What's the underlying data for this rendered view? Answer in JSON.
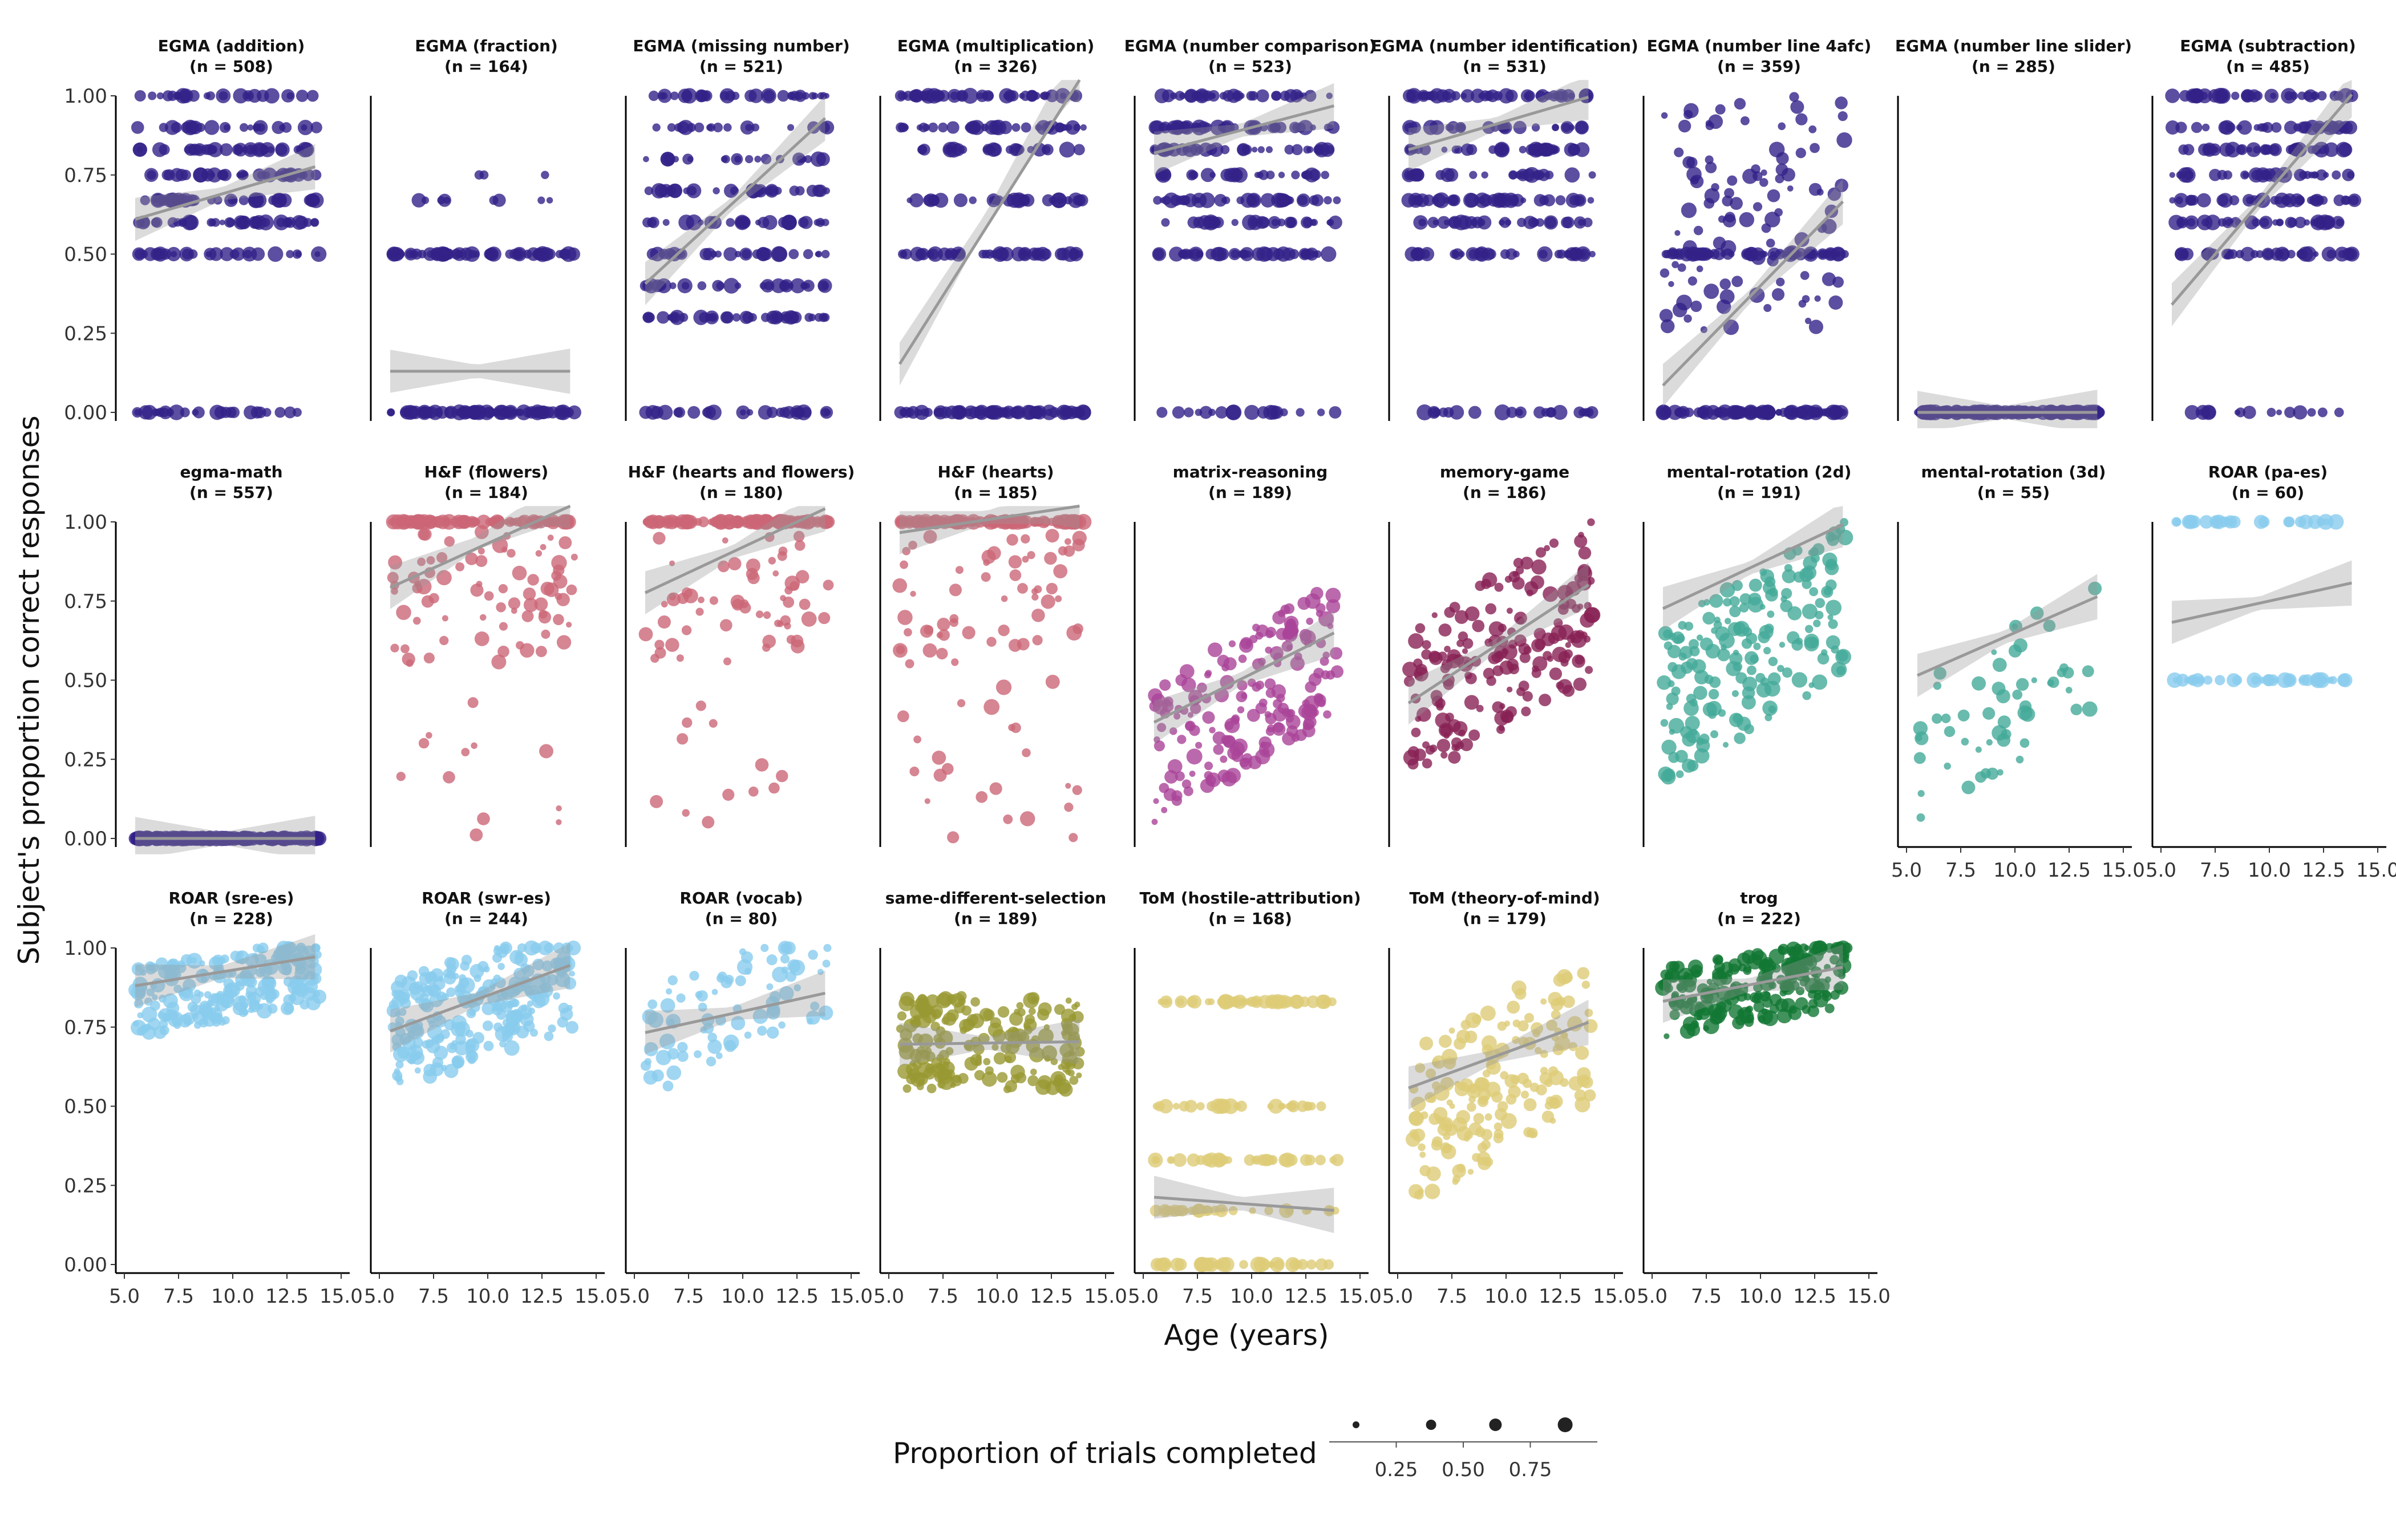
{
  "chart_data": {
    "type": "scatter",
    "xlabel": "Age (years)",
    "ylabel": "Subject's proportion correct responses",
    "xlim": [
      5,
      15
    ],
    "ylim": [
      0,
      1
    ],
    "x_ticks": [
      "5.0",
      "7.5",
      "10.0",
      "12.5",
      "15.0"
    ],
    "y_ticks": [
      "0.00",
      "0.25",
      "0.50",
      "0.75",
      "1.00"
    ],
    "grid": false,
    "legend": {
      "title": "Proportion of trials completed",
      "placement": "bottom",
      "breaks": [
        0.25,
        0.5,
        0.75
      ],
      "labels": [
        "0.25",
        "0.50",
        "0.75"
      ]
    },
    "panels": [
      {
        "name": "EGMA (addition)",
        "n": "(n = 508)",
        "color": "#332288",
        "fit": [
          0.5,
          0.02
        ],
        "yband": "high_discrete"
      },
      {
        "name": "EGMA (fraction)",
        "n": "(n = 164)",
        "color": "#332288",
        "fit": [
          0.13,
          0.0
        ],
        "yband": "fraction"
      },
      {
        "name": "EGMA (missing number)",
        "n": "(n = 521)",
        "color": "#332288",
        "fit": [
          0.06,
          0.063
        ],
        "yband": "discrete"
      },
      {
        "name": "EGMA (multiplication)",
        "n": "(n = 326)",
        "color": "#332288",
        "fit": [
          -0.48,
          0.115
        ],
        "yband": "discrete_sparse"
      },
      {
        "name": "EGMA (number comparison)",
        "n": "(n = 523)",
        "color": "#332288",
        "fit": [
          0.72,
          0.018
        ],
        "yband": "high_discrete"
      },
      {
        "name": "EGMA (number identification)",
        "n": "(n = 531)",
        "color": "#332288",
        "fit": [
          0.72,
          0.02
        ],
        "yband": "high_discrete"
      },
      {
        "name": "EGMA (number line 4afc)",
        "n": "(n = 359)",
        "color": "#332288",
        "fit": [
          -0.3,
          0.07
        ],
        "yband": "sparse"
      },
      {
        "name": "EGMA (number line slider)",
        "n": "(n = 285)",
        "color": "#332288",
        "fit": [
          0.0,
          0.0
        ],
        "yband": "zero"
      },
      {
        "name": "EGMA (subtraction)",
        "n": "(n = 485)",
        "color": "#332288",
        "fit": [
          -0.1,
          0.08
        ],
        "yband": "high_discrete"
      },
      {
        "name": "egma-math",
        "n": "(n = 557)",
        "color": "#332288",
        "fit": [
          0.0,
          0.0
        ],
        "yband": "zero"
      },
      {
        "name": "H&F (flowers)",
        "n": "(n = 184)",
        "color": "#CC6677",
        "fit": [
          0.6,
          0.035
        ],
        "yband": "hf"
      },
      {
        "name": "H&F (hearts and flowers)",
        "n": "(n = 180)",
        "color": "#CC6677",
        "fit": [
          0.6,
          0.032
        ],
        "yband": "hf"
      },
      {
        "name": "H&F (hearts)",
        "n": "(n = 185)",
        "color": "#CC6677",
        "fit": [
          0.9,
          0.012
        ],
        "yband": "hf"
      },
      {
        "name": "matrix-reasoning",
        "n": "(n = 189)",
        "color": "#AA4499",
        "fit": [
          0.18,
          0.034
        ],
        "yband": "mid"
      },
      {
        "name": "memory-game",
        "n": "(n = 186)",
        "color": "#882255",
        "fit": [
          0.18,
          0.045
        ],
        "yband": "mid_high"
      },
      {
        "name": "mental-rotation (2d)",
        "n": "(n = 191)",
        "color": "#44AA99",
        "fit": [
          0.55,
          0.032
        ],
        "yband": "mid_high"
      },
      {
        "name": "mental-rotation (3d)",
        "n": "(n = 55)",
        "color": "#44AA99",
        "fit": [
          0.35,
          0.03
        ],
        "yband": "mid"
      },
      {
        "name": "ROAR (pa-es)",
        "n": "(n = 60)",
        "color": "#88CCEE",
        "fit": [
          0.6,
          0.015
        ],
        "yband": "paes"
      },
      {
        "name": "ROAR (sre-es)",
        "n": "(n = 228)",
        "color": "#88CCEE",
        "fit": [
          0.82,
          0.011
        ],
        "yband": "veryhigh"
      },
      {
        "name": "ROAR (swr-es)",
        "n": "(n = 244)",
        "color": "#88CCEE",
        "fit": [
          0.6,
          0.025
        ],
        "yband": "high"
      },
      {
        "name": "ROAR (vocab)",
        "n": "(n = 80)",
        "color": "#88CCEE",
        "fit": [
          0.65,
          0.015
        ],
        "yband": "high"
      },
      {
        "name": "same-different-selection",
        "n": "(n = 189)",
        "color": "#999933",
        "fit": [
          0.69,
          0.001
        ],
        "yband": "flat"
      },
      {
        "name": "ToM (hostile-attribution)",
        "n": "(n = 168)",
        "color": "#DDCC77",
        "fit": [
          0.24,
          -0.005
        ],
        "yband": "hostile"
      },
      {
        "name": "ToM (theory-of-mind)",
        "n": "(n = 179)",
        "color": "#DDCC77",
        "fit": [
          0.42,
          0.025
        ],
        "yband": "mid_high"
      },
      {
        "name": "trog",
        "n": "(n = 222)",
        "color": "#117733",
        "fit": [
          0.76,
          0.013
        ],
        "yband": "veryhigh"
      }
    ]
  }
}
